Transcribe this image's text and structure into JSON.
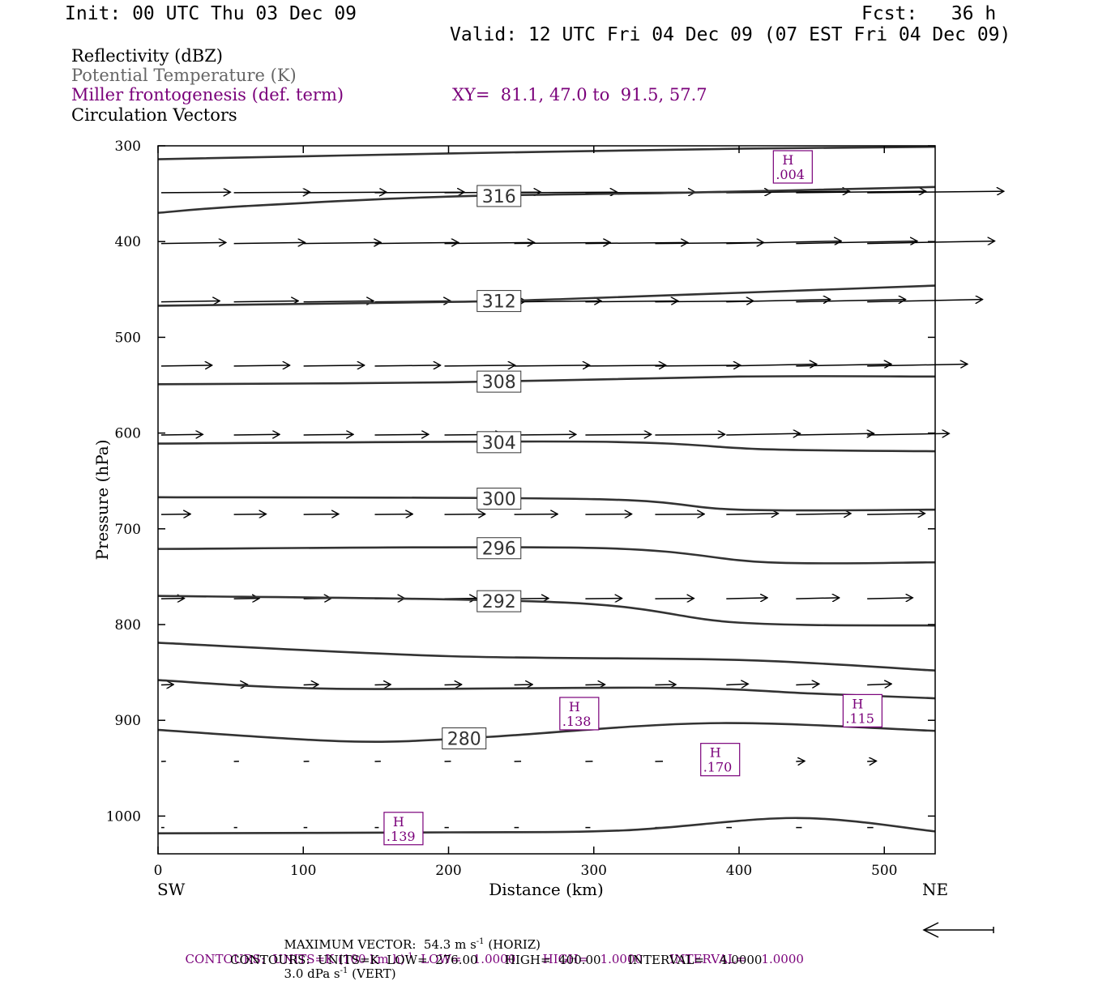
{
  "header": {
    "init": "Init: 00 UTC Thu 03 Dec 09",
    "fcst": "Fcst:   36 h",
    "valid": "Valid: 12 UTC Fri 04 Dec 09 (07 EST Fri 04 Dec 09)"
  },
  "legend": {
    "line1": "Reflectivity (dBZ)",
    "line2": "Potential Temperature (K)",
    "line3": "Miller frontogenesis (def. term)",
    "xy": "XY=  81.1, 47.0 to  91.5, 57.7",
    "line4": "Circulation Vectors"
  },
  "colors": {
    "purple": "#7a007a",
    "gray": "#555555",
    "contour": "#333333"
  },
  "chart_data": {
    "type": "cross-section",
    "xlabel": "Distance (km)",
    "ylabel": "Pressure (hPa)",
    "xlim": [
      0,
      535
    ],
    "ylim": [
      1040,
      300
    ],
    "x_ticks": [
      "0",
      "100",
      "200",
      "300",
      "400",
      "500"
    ],
    "y_ticks": [
      "300",
      "400",
      "500",
      "600",
      "700",
      "800",
      "900",
      "1000"
    ],
    "x_end_labels": {
      "left": "SW",
      "right": "NE"
    },
    "isentropes": [
      {
        "label": "",
        "points": [
          [
            0,
            314
          ],
          [
            200,
            308
          ],
          [
            400,
            303
          ],
          [
            535,
            301
          ]
        ]
      },
      {
        "label": "316",
        "label_x": 218,
        "points": [
          [
            0,
            370
          ],
          [
            60,
            363
          ],
          [
            200,
            353
          ],
          [
            360,
            349
          ],
          [
            535,
            343
          ]
        ]
      },
      {
        "label": "312",
        "label_x": 218,
        "points": [
          [
            0,
            467
          ],
          [
            200,
            463
          ],
          [
            280,
            460
          ],
          [
            535,
            446
          ]
        ]
      },
      {
        "label": "308",
        "label_x": 218,
        "points": [
          [
            0,
            549
          ],
          [
            200,
            547
          ],
          [
            400,
            541
          ],
          [
            535,
            541
          ]
        ]
      },
      {
        "label": "304",
        "label_x": 218,
        "points": [
          [
            0,
            611
          ],
          [
            300,
            609
          ],
          [
            420,
            617
          ],
          [
            535,
            619
          ]
        ]
      },
      {
        "label": "300",
        "label_x": 218,
        "points": [
          [
            0,
            667
          ],
          [
            300,
            669
          ],
          [
            400,
            680
          ],
          [
            535,
            680
          ]
        ]
      },
      {
        "label": "296",
        "label_x": 218,
        "points": [
          [
            0,
            721
          ],
          [
            300,
            720
          ],
          [
            420,
            735
          ],
          [
            535,
            735
          ]
        ]
      },
      {
        "label": "292",
        "label_x": 218,
        "points": [
          [
            0,
            770
          ],
          [
            280,
            777
          ],
          [
            400,
            798
          ],
          [
            535,
            801
          ]
        ]
      },
      {
        "label": "",
        "points": [
          [
            0,
            819
          ],
          [
            200,
            833
          ],
          [
            400,
            837
          ],
          [
            535,
            848
          ]
        ]
      },
      {
        "label": "",
        "points": [
          [
            0,
            858
          ],
          [
            120,
            867
          ],
          [
            350,
            866
          ],
          [
            450,
            872
          ],
          [
            535,
            877
          ]
        ]
      },
      {
        "label": "280",
        "label_x": 194,
        "points": [
          [
            0,
            910
          ],
          [
            130,
            922
          ],
          [
            220,
            918
          ],
          [
            380,
            903
          ],
          [
            535,
            911
          ]
        ]
      },
      {
        "label": "",
        "points": [
          [
            0,
            1018
          ],
          [
            200,
            1017
          ],
          [
            320,
            1015
          ],
          [
            440,
            1002
          ],
          [
            535,
            1016
          ]
        ]
      }
    ],
    "frontogenesis_highs": [
      {
        "label": "H",
        "value": ".004",
        "x": 437,
        "p": 322
      },
      {
        "label": "H",
        "value": ".138",
        "x": 290,
        "p": 893
      },
      {
        "label": "H",
        "value": ".115",
        "x": 485,
        "p": 890
      },
      {
        "label": "H",
        "value": ".170",
        "x": 387,
        "p": 941
      },
      {
        "label": "H",
        "value": ".139",
        "x": 169,
        "p": 1013
      }
    ],
    "vector_levels": [
      {
        "p": 349,
        "u": 45,
        "w": 0.3
      },
      {
        "p": 402,
        "u": 42,
        "w": 0.5
      },
      {
        "p": 463,
        "u": 38,
        "w": 0.5
      },
      {
        "p": 530,
        "u": 33,
        "w": 0.4
      },
      {
        "p": 602,
        "u": 27,
        "w": 0.3
      },
      {
        "p": 685,
        "u": 19,
        "w": 0.2
      },
      {
        "p": 773,
        "u": 15,
        "w": 0.2
      },
      {
        "p": 863,
        "u": 8,
        "w": 0.2
      },
      {
        "p": 943,
        "u": 3,
        "w": 0.1
      },
      {
        "p": 1012,
        "u": 2,
        "w": 0.0
      }
    ],
    "vector_columns_km": [
      0,
      50,
      98,
      147,
      195,
      243,
      292,
      340,
      389,
      437,
      486
    ]
  },
  "footer": {
    "maxvec_a": "MAXIMUM VECTOR:  54.3 m s",
    "maxvec_b": "(HORIZ)",
    "maxvec_c": "3.0 dPa s",
    "maxvec_d": "(VERT)",
    "sup": "-1",
    "contours1_a": "CONTOURS:  UNITS=K (100 km h)",
    "contours1_b": "LOW=   1.0000       HIGH=   1.0000       INTERVAL=    1.0000",
    "contours2": "CONTOURS:  UNITS=K  LOW=  276.00       HIGH=  400.00       INTERVAL=    4.0000"
  }
}
